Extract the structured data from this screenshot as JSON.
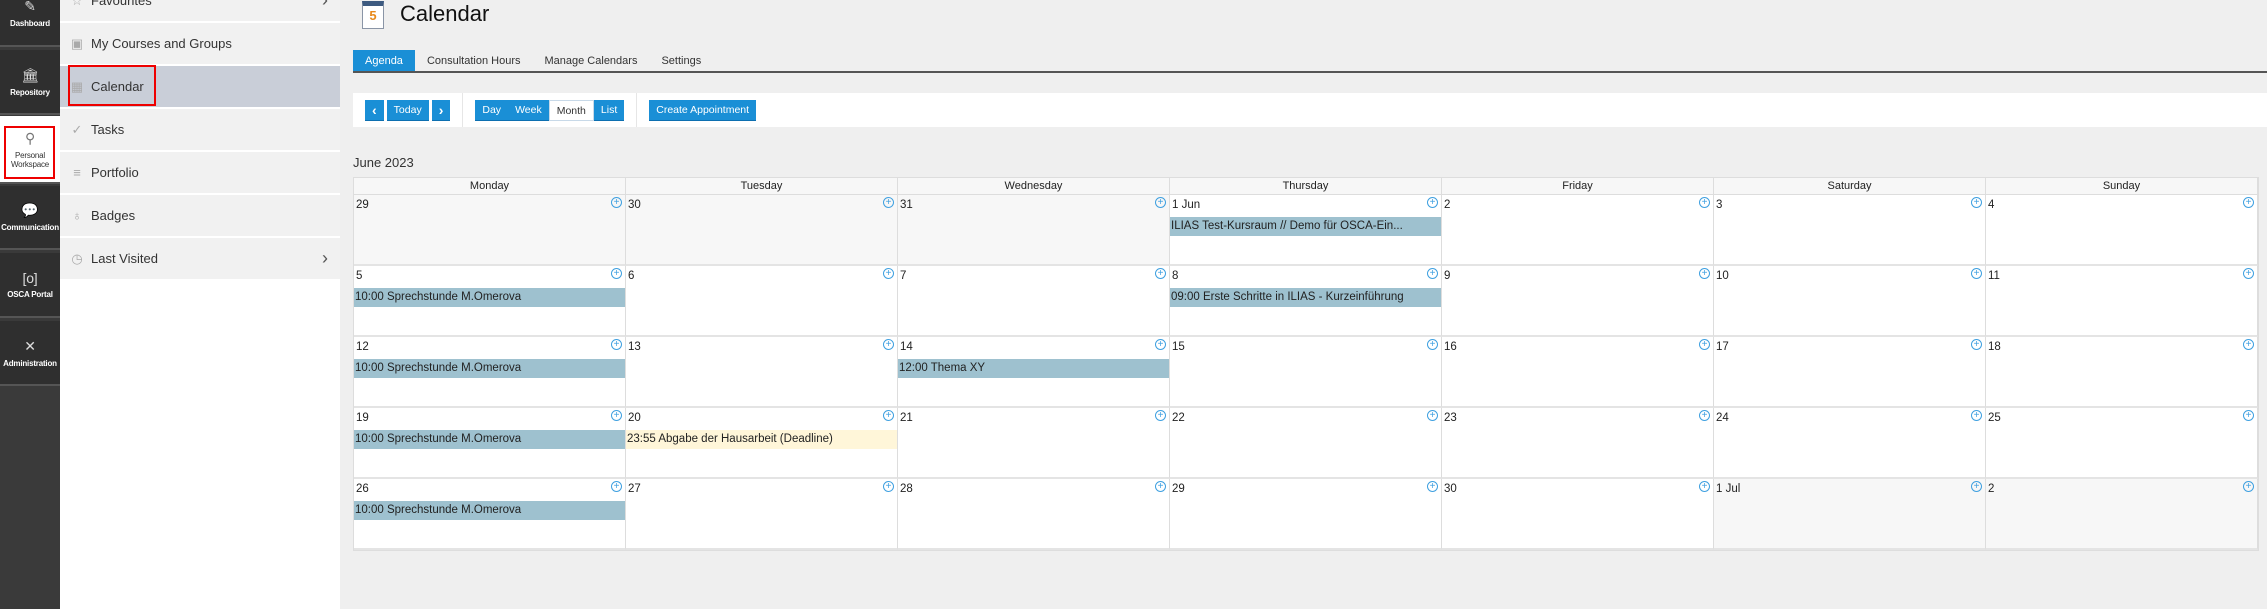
{
  "rail": [
    {
      "label": "Dashboard",
      "icon": "dashboard-icon"
    },
    {
      "label": "Repository",
      "icon": "bank-icon"
    },
    {
      "label": "Personal Workspace",
      "icon": "user-icon",
      "active": true
    },
    {
      "label": "Communication",
      "icon": "chat-icon"
    },
    {
      "label": "OSCA Portal",
      "icon": "portal-icon"
    },
    {
      "label": "Administration",
      "icon": "tools-icon"
    }
  ],
  "sidebar": [
    {
      "label": "Favourites",
      "icon": "star-icon",
      "chevron": true
    },
    {
      "label": "My Courses and Groups",
      "icon": "courses-icon"
    },
    {
      "label": "Calendar",
      "icon": "calendar-icon",
      "selected": true
    },
    {
      "label": "Tasks",
      "icon": "check-icon"
    },
    {
      "label": "Portfolio",
      "icon": "portfolio-icon"
    },
    {
      "label": "Badges",
      "icon": "badge-icon"
    },
    {
      "label": "Last Visited",
      "icon": "clock-icon",
      "chevron": true
    }
  ],
  "header": {
    "title": "Calendar",
    "icon_day": "5"
  },
  "tabs": [
    {
      "label": "Agenda",
      "active": true
    },
    {
      "label": "Consultation Hours"
    },
    {
      "label": "Manage Calendars"
    },
    {
      "label": "Settings"
    }
  ],
  "toolbar": {
    "prev": "‹",
    "today": "Today",
    "next": "›",
    "views": [
      "Day",
      "Week",
      "Month",
      "List"
    ],
    "active_view": "Month",
    "create": "Create Appointment"
  },
  "colors": {
    "accent": "#1a8fd6",
    "event": "#9ec1cf",
    "deadline": "#fff6d9"
  },
  "month_label": "June 2023",
  "weekdays": [
    "Monday",
    "Tuesday",
    "Wednesday",
    "Thursday",
    "Friday",
    "Saturday",
    "Sunday"
  ],
  "weeks": [
    [
      {
        "d": "29",
        "muted": true
      },
      {
        "d": "30",
        "muted": true
      },
      {
        "d": "31",
        "muted": true
      },
      {
        "d": "1 Jun",
        "ev": "ILIAS Test-Kursraum // Demo für OSCA-Ein..."
      },
      {
        "d": "2"
      },
      {
        "d": "3"
      },
      {
        "d": "4"
      }
    ],
    [
      {
        "d": "5",
        "ev": "10:00 Sprechstunde M.Omerova"
      },
      {
        "d": "6"
      },
      {
        "d": "7"
      },
      {
        "d": "8",
        "ev": "09:00 Erste Schritte in ILIAS - Kurzeinführung"
      },
      {
        "d": "9"
      },
      {
        "d": "10"
      },
      {
        "d": "11"
      }
    ],
    [
      {
        "d": "12",
        "ev": "10:00 Sprechstunde M.Omerova"
      },
      {
        "d": "13"
      },
      {
        "d": "14",
        "ev": "12:00 Thema XY"
      },
      {
        "d": "15"
      },
      {
        "d": "16"
      },
      {
        "d": "17"
      },
      {
        "d": "18"
      }
    ],
    [
      {
        "d": "19",
        "ev": "10:00 Sprechstunde M.Omerova"
      },
      {
        "d": "20",
        "ev": "23:55 Abgabe der Hausarbeit (Deadline)",
        "deadline": true
      },
      {
        "d": "21"
      },
      {
        "d": "22"
      },
      {
        "d": "23"
      },
      {
        "d": "24"
      },
      {
        "d": "25"
      }
    ],
    [
      {
        "d": "26",
        "ev": "10:00 Sprechstunde M.Omerova"
      },
      {
        "d": "27"
      },
      {
        "d": "28"
      },
      {
        "d": "29"
      },
      {
        "d": "30"
      },
      {
        "d": "1 Jul",
        "muted": true
      },
      {
        "d": "2",
        "muted": true
      }
    ]
  ]
}
